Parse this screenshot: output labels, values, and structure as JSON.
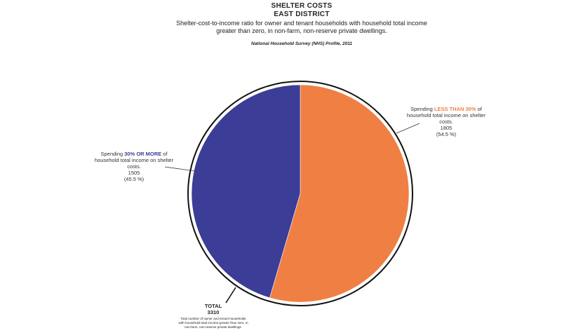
{
  "chart_data": {
    "type": "pie",
    "title": "SHELTER COSTS",
    "subtitle_line": "EAST DISTRICT",
    "description": "Shelter-cost-to-income ratio for owner and tenant households with household total income greater than zero, in non-farm, non-reserve private dwellings.",
    "source": "National Household Survey (NHS) Profile, 2011",
    "slices": [
      {
        "name": "less-than-30",
        "prefix": "Spending ",
        "highlight": "LESS THAN 30%",
        "suffix": " of",
        "detail": "household total income on shelter costs.",
        "value": 1805,
        "value_label": "1805",
        "percent": 54.5,
        "percent_label": "(54.5 %)",
        "color": "#f07f43"
      },
      {
        "name": "30-or-more",
        "prefix": "Spending ",
        "highlight": "30% OR MORE",
        "suffix": " of",
        "detail": "household total income on shelter costs.",
        "value": 1505,
        "value_label": "1505",
        "percent": 45.5,
        "percent_label": "(45.5 %)",
        "color": "#3b3d96"
      }
    ],
    "total": {
      "title": "TOTAL",
      "value": 3310,
      "value_label": "3310",
      "description": "Total number of owner and tenant households with household total income greater than zero, in non-farm, non-reserve private dwellings."
    }
  }
}
